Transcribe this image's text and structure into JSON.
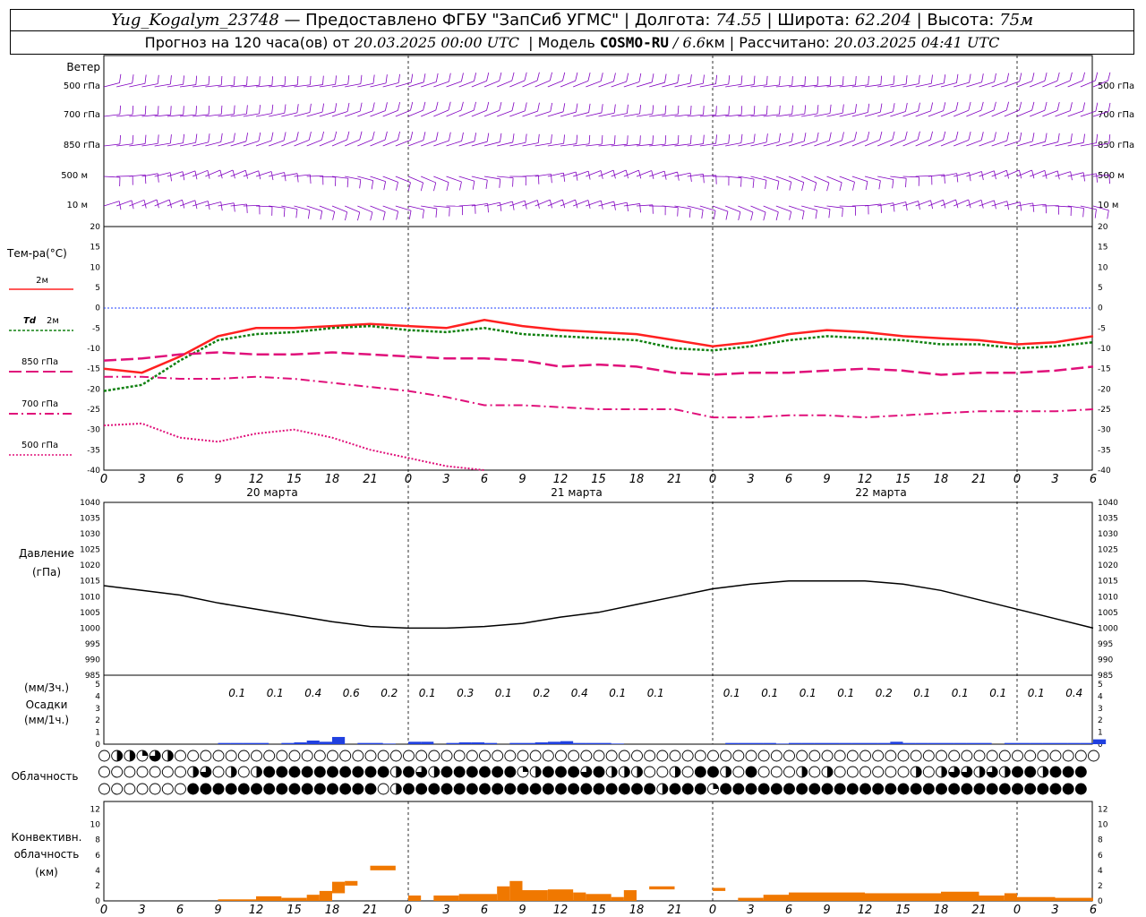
{
  "header": {
    "station": "Yug_Kogalym_23748",
    "provider": " — Предоставлено ФГБУ \"ЗапСиб УГМС\" ",
    "lon_label": "Долгота: ",
    "lon_value": "74.55",
    "lat_label": "Широта: ",
    "lat_value": "62.204",
    "alt_label": "Высота: ",
    "alt_value": "75м",
    "forecast_prefix": "Прогноз на 120 часа(ов) от ",
    "forecast_time": "20.03.2025 00:00 UTC",
    "model_label": "Модель ",
    "model_name": "COSMO-RU",
    "model_res": " / 6.6",
    "model_unit": "км",
    "calc_label": "Рассчитано: ",
    "calc_time": "20.03.2025 04:41 UTC"
  },
  "colors": {
    "wind": "#8000c0",
    "t2m": "#ff2020",
    "td2m": "#108010",
    "t850": "#e0107a",
    "t700": "#e0107a",
    "t500": "#e0107a",
    "zero_line": "#2040ff",
    "precip": "#2040e0",
    "conv": "#f07800",
    "pressure": "#000000"
  },
  "x_axis": {
    "hour_ticks": [
      "0",
      "3",
      "6",
      "9",
      "12",
      "15",
      "18",
      "21",
      "0",
      "3",
      "6",
      "9",
      "12",
      "15",
      "18",
      "21",
      "0",
      "3",
      "6",
      "9",
      "12",
      "15",
      "18",
      "21",
      "0",
      "3",
      "6"
    ],
    "day_labels": [
      "20 марта",
      "21 марта",
      "22 марта"
    ]
  },
  "wind": {
    "title": "Ветер",
    "levels": [
      "500 гПа",
      "700 гПа",
      "850 гПа",
      "500 м",
      "10  м"
    ],
    "levels_right": [
      "500 гПа",
      "700 гПа",
      "850 гПа",
      "500 м",
      "10  м"
    ]
  },
  "temperature": {
    "title": "Тем-ра(°С)",
    "legend": [
      {
        "label": "2м"
      },
      {
        "label_it": "Td",
        "label": " 2м"
      },
      {
        "label": "850 гПа"
      },
      {
        "label": "700 гПа"
      },
      {
        "label": "500 гПа"
      }
    ]
  },
  "pressure": {
    "title": "Давление",
    "unit": "(гПа)"
  },
  "precip": {
    "unit_top": "(мм/3ч.)",
    "title": "Осадки",
    "unit_bottom": "(мм/1ч.)",
    "totals": [
      "0.1",
      "0.1",
      "0.4",
      "0.6",
      "0.2",
      "0.1",
      "0.3",
      "0.1",
      "0.2",
      "0.4",
      "0.1",
      "0.1",
      "",
      "0.1",
      "0.1",
      "0.1",
      "0.1",
      "0.2",
      "0.1",
      "0.1",
      "0.1",
      "0.1",
      "0.4"
    ]
  },
  "cloud": {
    "title": "Облачность"
  },
  "convective": {
    "title1": "Конвективн.",
    "title2": "облачность",
    "unit": "(км)"
  },
  "chart_data": [
    {
      "type": "line",
      "name": "temperature",
      "ylim": [
        -40,
        20
      ],
      "yticks": [
        20,
        15,
        10,
        5,
        0,
        -5,
        -10,
        -15,
        -20,
        -25,
        -30,
        -35,
        -40
      ],
      "x_hours": [
        0,
        3,
        6,
        9,
        12,
        15,
        18,
        21,
        24,
        27,
        30,
        33,
        36,
        39,
        42,
        45,
        48,
        51,
        54,
        57,
        60,
        63,
        66,
        69,
        72,
        75,
        78
      ],
      "series": [
        {
          "name": "2м",
          "values": [
            -15,
            -16,
            -12,
            -7,
            -5,
            -5,
            -4.5,
            -4,
            -4.5,
            -5,
            -3,
            -4.5,
            -5.5,
            -6,
            -6.5,
            -8,
            -9.5,
            -8.5,
            -6.5,
            -5.5,
            -6,
            -7,
            -7.5,
            -8,
            -9,
            -8.5,
            -7
          ]
        },
        {
          "name": "Td 2м",
          "values": [
            -20.5,
            -19,
            -13,
            -8,
            -6.5,
            -6,
            -5,
            -4.5,
            -5.5,
            -6,
            -5,
            -6.5,
            -7,
            -7.5,
            -8,
            -10,
            -10.5,
            -9.5,
            -8,
            -7,
            -7.5,
            -8,
            -9,
            -9,
            -10,
            -9.5,
            -8.5
          ]
        },
        {
          "name": "850 гПа",
          "values": [
            -13,
            -12.5,
            -11.5,
            -11,
            -11.5,
            -11.5,
            -11,
            -11.5,
            -12,
            -12.5,
            -12.5,
            -13,
            -14.5,
            -14,
            -14.5,
            -16,
            -16.5,
            -16,
            -16,
            -15.5,
            -15,
            -15.5,
            -16.5,
            -16,
            -16,
            -15.5,
            -14.5
          ]
        },
        {
          "name": "700 гПа",
          "values": [
            -17,
            -17,
            -17.5,
            -17.5,
            -17,
            -17.5,
            -18.5,
            -19.5,
            -20.5,
            -22,
            -24,
            -24,
            -24.5,
            -25,
            -25,
            -25,
            -27,
            -27,
            -26.5,
            -26.5,
            -27,
            -26.5,
            -26,
            -25.5,
            -25.5,
            -25.5,
            -25
          ]
        },
        {
          "name": "500 гПа",
          "values": [
            -29,
            -28.5,
            -32,
            -33,
            -31,
            -30,
            -32,
            -35,
            -37,
            -39,
            -40,
            null,
            null,
            null,
            null,
            null,
            null,
            null,
            null,
            null,
            null,
            null,
            null,
            null,
            null,
            null,
            null
          ]
        }
      ]
    },
    {
      "type": "line",
      "name": "pressure",
      "ylim": [
        985,
        1040
      ],
      "yticks": [
        1040,
        1035,
        1030,
        1025,
        1020,
        1015,
        1010,
        1005,
        1000,
        995,
        990,
        985
      ],
      "x_hours": [
        0,
        3,
        6,
        9,
        12,
        15,
        18,
        21,
        24,
        27,
        30,
        33,
        36,
        39,
        42,
        45,
        48,
        51,
        54,
        57,
        60,
        63,
        66,
        69,
        72,
        75,
        78
      ],
      "series": [
        {
          "name": "Давление",
          "values": [
            1013.5,
            1012,
            1010.5,
            1008,
            1006,
            1004,
            1002,
            1000.5,
            1000,
            1000,
            1000.5,
            1001.5,
            1003.5,
            1005,
            1007.5,
            1010,
            1012.5,
            1014,
            1015,
            1015,
            1015,
            1014,
            1012,
            1009,
            1006,
            1003,
            1000
          ]
        }
      ]
    },
    {
      "type": "bar",
      "name": "precip",
      "ylim": [
        0,
        5
      ],
      "x_hours": [
        9,
        10,
        11,
        12,
        13,
        14,
        15,
        16,
        17,
        18,
        19,
        20,
        21,
        22,
        23,
        24,
        25,
        26,
        27,
        28,
        29,
        30,
        31,
        32,
        33,
        34,
        35,
        36,
        37,
        38,
        39,
        40,
        41,
        42,
        43,
        44,
        45,
        46,
        47,
        48,
        49,
        50,
        51,
        52,
        53,
        54,
        55,
        56,
        57,
        58,
        59,
        60,
        61,
        62,
        63,
        64,
        65,
        66,
        67,
        68,
        69,
        70,
        71,
        72,
        73,
        74,
        75,
        76,
        77,
        78
      ],
      "values": [
        0.1,
        0.1,
        0.1,
        0.1,
        0,
        0.1,
        0.15,
        0.3,
        0.2,
        0.6,
        0,
        0.1,
        0.1,
        0.05,
        0,
        0.2,
        0.2,
        0,
        0.1,
        0.15,
        0.15,
        0.1,
        0,
        0.1,
        0.1,
        0.15,
        0.2,
        0.25,
        0.1,
        0.1,
        0.1,
        0.05,
        0,
        0,
        0,
        0,
        0,
        0,
        0,
        0,
        0.1,
        0.1,
        0.1,
        0.1,
        0.05,
        0.1,
        0.1,
        0.1,
        0.1,
        0.1,
        0.1,
        0.1,
        0.1,
        0.2,
        0.1,
        0.1,
        0.1,
        0.1,
        0.1,
        0.1,
        0.1,
        0,
        0.1,
        0.1,
        0.1,
        0.1,
        0.1,
        0.1,
        0.1,
        0.4
      ]
    },
    {
      "type": "heatmap",
      "name": "cloud",
      "rows": [
        "high",
        "middle",
        "low"
      ],
      "x_hours_start": 0,
      "x_hours_step": 1,
      "values": [
        [
          0,
          0.5,
          0.5,
          0.25,
          0.75,
          0.5,
          0,
          0,
          0,
          0,
          0,
          0,
          0,
          0,
          0,
          0,
          0,
          0,
          0,
          0,
          0,
          0,
          0,
          0,
          0,
          0,
          0,
          0,
          0,
          0,
          0,
          0,
          0,
          0,
          0,
          0,
          0,
          0,
          0,
          0,
          0,
          0,
          0,
          0,
          0,
          0,
          0,
          0,
          0,
          0,
          0,
          0,
          0,
          0,
          0,
          0,
          0,
          0,
          0,
          0,
          0,
          0,
          0,
          0,
          0,
          0,
          0,
          0,
          0,
          0,
          0,
          0,
          0,
          0,
          0,
          0,
          0,
          0,
          0
        ],
        [
          0,
          0,
          0,
          0,
          0,
          0,
          0,
          0.5,
          0.75,
          0,
          0.5,
          0,
          0.5,
          1,
          1,
          1,
          1,
          1,
          1,
          1,
          1,
          1,
          1,
          0.5,
          1,
          0.75,
          0.5,
          1,
          1,
          1,
          1,
          1,
          1,
          0.25,
          0.5,
          1,
          1,
          1,
          0.75,
          1,
          0.5,
          0.5,
          0.5,
          0,
          0,
          0.5,
          0,
          1,
          1,
          0.5,
          0,
          1,
          0,
          0,
          0,
          0.5,
          0,
          0.5,
          0,
          0,
          0,
          0,
          0,
          0,
          0.5,
          0,
          0.5,
          0.75,
          0.75,
          0.5,
          0.75,
          0.5,
          1,
          1,
          0.5,
          1,
          1,
          1
        ],
        [
          0,
          0,
          0,
          0,
          0,
          0,
          0,
          1,
          1,
          1,
          1,
          1,
          1,
          1,
          1,
          1,
          1,
          1,
          1,
          1,
          1,
          1,
          0,
          0.5,
          1,
          1,
          1,
          1,
          1,
          1,
          1,
          1,
          1,
          1,
          1,
          1,
          1,
          1,
          1,
          1,
          1,
          1,
          1,
          1,
          0.5,
          1,
          1,
          1,
          0.25,
          1,
          1,
          1,
          1,
          1,
          1,
          1,
          1,
          1,
          1,
          1,
          1,
          1,
          1,
          1,
          1,
          1,
          1,
          1,
          1,
          1,
          1,
          1,
          1,
          1,
          1,
          1,
          1,
          1
        ]
      ]
    },
    {
      "type": "bar",
      "name": "convective",
      "ylim": [
        0,
        13
      ],
      "yticks": [
        12,
        10,
        8,
        6,
        4,
        2,
        0
      ],
      "bars": [
        {
          "h0": 9,
          "h1": 12,
          "bottom": 0,
          "top": 0.2
        },
        {
          "h0": 12,
          "h1": 14,
          "bottom": 0,
          "top": 0.6
        },
        {
          "h0": 14,
          "h1": 16,
          "bottom": 0,
          "top": 0.4
        },
        {
          "h0": 16,
          "h1": 17,
          "bottom": 0,
          "top": 0.8
        },
        {
          "h0": 17,
          "h1": 18,
          "bottom": 0,
          "top": 1.3
        },
        {
          "h0": 18,
          "h1": 19,
          "bottom": 1,
          "top": 2.5
        },
        {
          "h0": 19,
          "h1": 20,
          "bottom": 2,
          "top": 2.6
        },
        {
          "h0": 21,
          "h1": 23,
          "bottom": 4,
          "top": 4.6
        },
        {
          "h0": 24,
          "h1": 25,
          "bottom": 0,
          "top": 0.7
        },
        {
          "h0": 26,
          "h1": 28,
          "bottom": 0,
          "top": 0.7
        },
        {
          "h0": 28,
          "h1": 31,
          "bottom": 0,
          "top": 0.9
        },
        {
          "h0": 31,
          "h1": 32,
          "bottom": 0,
          "top": 1.9
        },
        {
          "h0": 32,
          "h1": 33,
          "bottom": 0,
          "top": 2.6
        },
        {
          "h0": 33,
          "h1": 35,
          "bottom": 0,
          "top": 1.4
        },
        {
          "h0": 35,
          "h1": 37,
          "bottom": 0,
          "top": 1.5
        },
        {
          "h0": 37,
          "h1": 38,
          "bottom": 0,
          "top": 1.1
        },
        {
          "h0": 38,
          "h1": 40,
          "bottom": 0,
          "top": 0.9
        },
        {
          "h0": 40,
          "h1": 41,
          "bottom": 0,
          "top": 0.5
        },
        {
          "h0": 41,
          "h1": 42,
          "bottom": 0,
          "top": 1.4
        },
        {
          "h0": 43,
          "h1": 45,
          "bottom": 1.5,
          "top": 1.9
        },
        {
          "h0": 48,
          "h1": 49,
          "bottom": 1.3,
          "top": 1.7
        },
        {
          "h0": 50,
          "h1": 52,
          "bottom": 0,
          "top": 0.4
        },
        {
          "h0": 52,
          "h1": 54,
          "bottom": 0,
          "top": 0.8
        },
        {
          "h0": 54,
          "h1": 60,
          "bottom": 0,
          "top": 1.1
        },
        {
          "h0": 60,
          "h1": 66,
          "bottom": 0,
          "top": 1.0
        },
        {
          "h0": 66,
          "h1": 69,
          "bottom": 0,
          "top": 1.2
        },
        {
          "h0": 69,
          "h1": 71,
          "bottom": 0,
          "top": 0.7
        },
        {
          "h0": 71,
          "h1": 72,
          "bottom": 0,
          "top": 1.0
        },
        {
          "h0": 72,
          "h1": 75,
          "bottom": 0,
          "top": 0.5
        },
        {
          "h0": 75,
          "h1": 78,
          "bottom": 0,
          "top": 0.4
        }
      ]
    }
  ]
}
